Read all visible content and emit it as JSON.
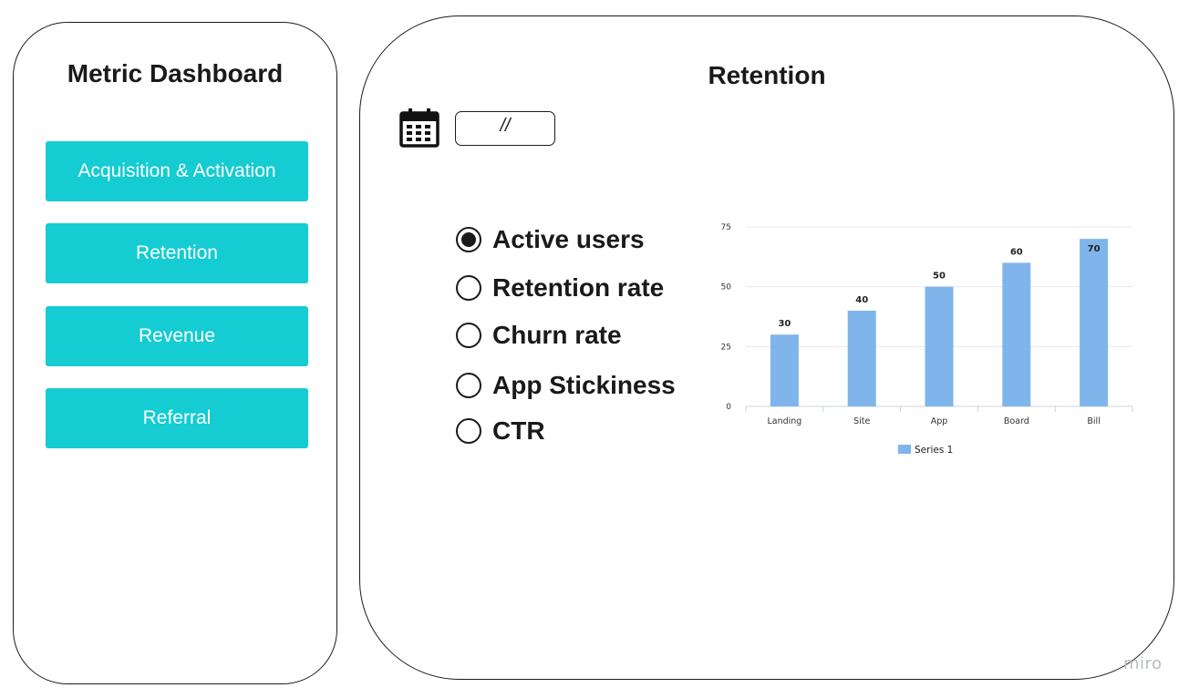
{
  "sidebar": {
    "title": "Metric Dashboard",
    "items": [
      {
        "label": "Acquisition & Activation"
      },
      {
        "label": "Retention"
      },
      {
        "label": "Revenue"
      },
      {
        "label": "Referral"
      }
    ]
  },
  "main": {
    "title": "Retention",
    "date_value": "//",
    "metrics": [
      {
        "label": "Active users",
        "selected": true
      },
      {
        "label": "Retention rate",
        "selected": false
      },
      {
        "label": "Churn rate",
        "selected": false
      },
      {
        "label": "App Stickiness",
        "selected": false
      },
      {
        "label": "CTR",
        "selected": false
      }
    ]
  },
  "chart_data": {
    "type": "bar",
    "categories": [
      "Landing",
      "Site",
      "App",
      "Board",
      "Bill"
    ],
    "series": [
      {
        "name": "Series 1",
        "values": [
          30,
          40,
          50,
          60,
          70
        ]
      }
    ],
    "ylim": [
      0,
      75
    ],
    "yticks": [
      0,
      25,
      50,
      75
    ],
    "grid": true,
    "legend": "bottom",
    "bar_color": "#7fb5ea"
  },
  "colors": {
    "nav_button": "#14ccd2",
    "outline": "#1a1a1a"
  },
  "icons": {
    "calendar": "calendar-icon"
  },
  "watermark": "miro"
}
